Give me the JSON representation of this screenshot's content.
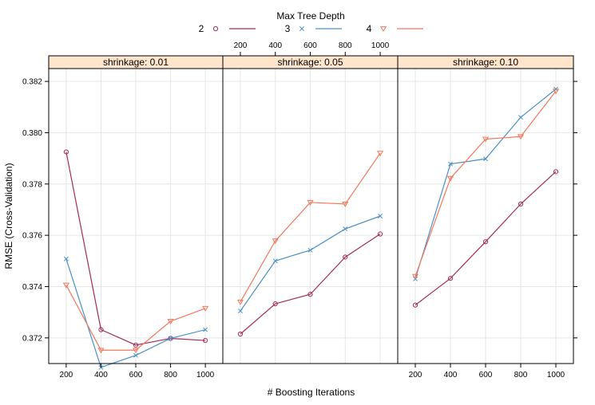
{
  "chart_data": {
    "type": "line",
    "legend": {
      "title": "Max Tree Depth",
      "position": "top",
      "entries": [
        {
          "label": "2",
          "marker": "circle",
          "color": "#a12d57"
        },
        {
          "label": "3",
          "marker": "x",
          "color": "#4a90c4"
        },
        {
          "label": "4",
          "marker": "triangle-down",
          "color": "#f2785c"
        }
      ]
    },
    "xlabel": "# Boosting Iterations",
    "ylabel": "RMSE (Cross-Validation)",
    "x": [
      200,
      400,
      600,
      800,
      1000
    ],
    "x_ticks": [
      "200",
      "400",
      "600",
      "800",
      "1000"
    ],
    "xlim": [
      150,
      1050
    ],
    "ylim": [
      0.371,
      0.3825
    ],
    "y_ticks": [
      "0.372",
      "0.374",
      "0.376",
      "0.378",
      "0.380",
      "0.382"
    ],
    "grid": true,
    "panels": [
      {
        "strip": "shrinkage: 0.01",
        "series": [
          {
            "name": "2",
            "values": [
              0.37925,
              0.37232,
              0.37172,
              0.37198,
              0.3719
            ]
          },
          {
            "name": "3",
            "values": [
              0.37508,
              0.37085,
              0.37132,
              0.37198,
              0.37232
            ]
          },
          {
            "name": "4",
            "values": [
              0.37406,
              0.37152,
              0.37152,
              0.37265,
              0.37315
            ]
          }
        ]
      },
      {
        "strip": "shrinkage: 0.05",
        "series": [
          {
            "name": "2",
            "values": [
              0.37215,
              0.37333,
              0.3737,
              0.37515,
              0.37605
            ]
          },
          {
            "name": "3",
            "values": [
              0.37305,
              0.375,
              0.37542,
              0.37625,
              0.37675
            ]
          },
          {
            "name": "4",
            "values": [
              0.3734,
              0.37578,
              0.37728,
              0.37722,
              0.3792
            ]
          }
        ]
      },
      {
        "strip": "shrinkage: 0.10",
        "series": [
          {
            "name": "2",
            "values": [
              0.37328,
              0.37432,
              0.37575,
              0.37722,
              0.37848
            ]
          },
          {
            "name": "3",
            "values": [
              0.3743,
              0.37878,
              0.37898,
              0.3806,
              0.3817
            ]
          },
          {
            "name": "4",
            "values": [
              0.3744,
              0.37822,
              0.37975,
              0.37985,
              0.38162
            ]
          }
        ]
      }
    ]
  }
}
